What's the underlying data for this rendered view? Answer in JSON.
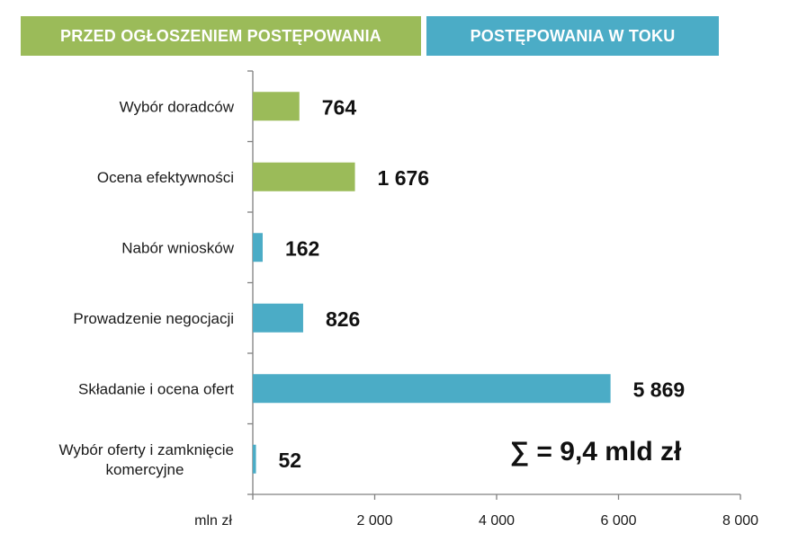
{
  "headers": {
    "before": "PRZED OGŁOSZENIEM POSTĘPOWANIA",
    "during": "POSTĘPOWANIA W TOKU"
  },
  "colors": {
    "before": "#9bbb59",
    "during": "#4bacc6"
  },
  "chart_data": {
    "type": "bar",
    "orientation": "horizontal",
    "categories": [
      [
        "Wybór doradców"
      ],
      [
        "Ocena efektywności"
      ],
      [
        "Nabór wniosków"
      ],
      [
        "Prowadzenie negocjacji"
      ],
      [
        "Składanie i ocena ofert"
      ],
      [
        "Wybór oferty i zamknięcie",
        "komercyjne"
      ]
    ],
    "values": [
      764,
      1676,
      162,
      826,
      5869,
      52
    ],
    "value_labels": [
      "764",
      "1 676",
      "162",
      "826",
      "5 869",
      "52"
    ],
    "groups": [
      "before",
      "before",
      "during",
      "during",
      "during",
      "during"
    ],
    "xlim": [
      0,
      8000
    ],
    "xticks": [
      2000,
      4000,
      6000,
      8000
    ],
    "xtick_labels": [
      "2 000",
      "4 000",
      "6 000",
      "8 000"
    ],
    "xlabel": "mln zł",
    "annotation": "∑ = 9,4 mld zł"
  }
}
